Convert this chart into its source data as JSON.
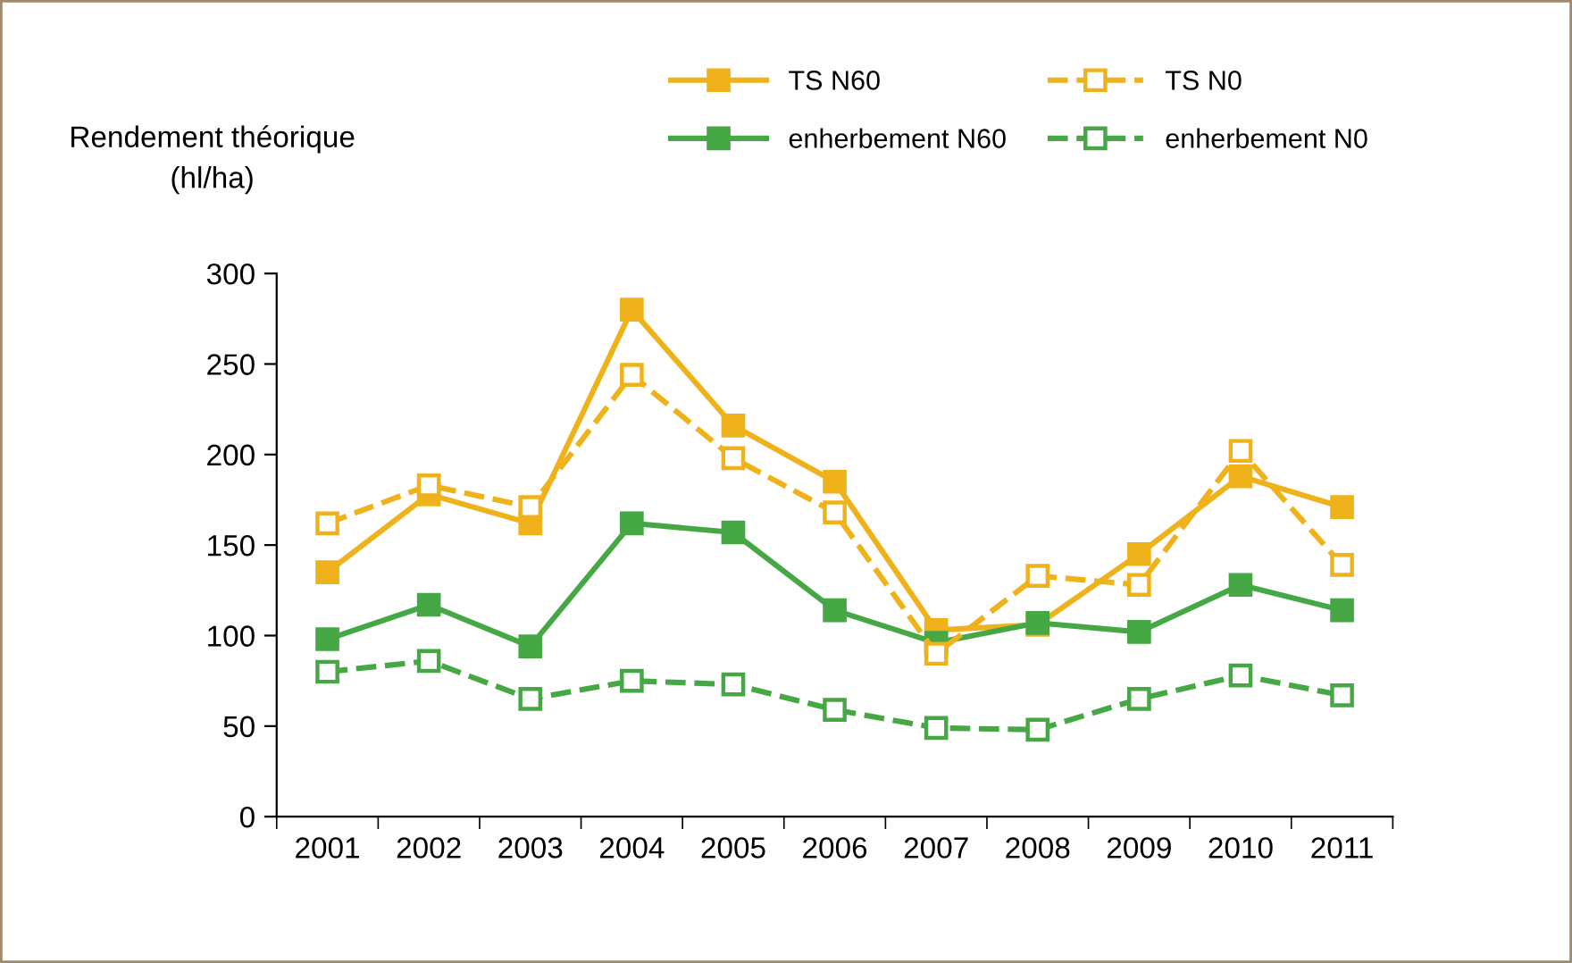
{
  "chart_data": {
    "type": "line",
    "ylabel": "Rendement théorique\n(hl/ha)",
    "categories": [
      "2001",
      "2002",
      "2003",
      "2004",
      "2005",
      "2006",
      "2007",
      "2008",
      "2009",
      "2010",
      "2011"
    ],
    "series": [
      {
        "name": "TS N60",
        "color": "#efb21a",
        "line_style": "solid",
        "values": [
          135,
          178,
          162,
          280,
          216,
          185,
          103,
          106,
          145,
          188,
          171
        ]
      },
      {
        "name": "enherbement N60",
        "color": "#45a845",
        "line_style": "solid",
        "values": [
          98,
          117,
          94,
          162,
          157,
          114,
          96,
          107,
          102,
          128,
          114
        ]
      },
      {
        "name": "TS N0",
        "color": "#efb21a",
        "line_style": "dashed",
        "values": [
          162,
          183,
          171,
          244,
          198,
          168,
          90,
          133,
          128,
          202,
          139
        ]
      },
      {
        "name": "enherbement N0",
        "color": "#45a845",
        "line_style": "dashed",
        "values": [
          80,
          86,
          65,
          75,
          73,
          59,
          49,
          48,
          65,
          78,
          67
        ]
      }
    ],
    "ylim": [
      0,
      300
    ],
    "yticks": [
      0,
      50,
      100,
      150,
      200,
      250,
      300
    ],
    "marker": "square",
    "grid": false,
    "legend": "top right"
  }
}
